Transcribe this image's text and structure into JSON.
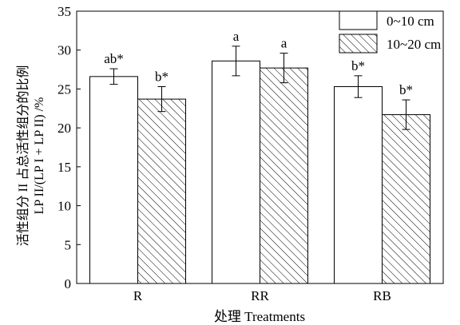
{
  "chart_data": {
    "type": "bar",
    "categories": [
      "R",
      "RR",
      "RB"
    ],
    "series": [
      {
        "name": "0~10 cm",
        "values": [
          26.6,
          28.6,
          25.3
        ],
        "errors": [
          1.0,
          1.9,
          1.4
        ],
        "labels": [
          "ab*",
          "a",
          "b*"
        ],
        "pattern": "solid-white"
      },
      {
        "name": "10~20 cm",
        "values": [
          23.7,
          27.7,
          21.7
        ],
        "errors": [
          1.6,
          1.9,
          1.9
        ],
        "labels": [
          "b*",
          "a",
          "b*"
        ],
        "pattern": "diagonal-hatch"
      }
    ],
    "xlabel": "处理 Treatments",
    "ylabel_line1": "活性组分 II 占总活性组分的比例",
    "ylabel_line2": "LP II/(LP I + LP II) /%",
    "ylim": [
      0,
      35
    ],
    "yticks": [
      "0",
      "5",
      "10",
      "15",
      "20",
      "25",
      "30",
      "35"
    ],
    "grid": false,
    "legend_position": "top-right"
  }
}
